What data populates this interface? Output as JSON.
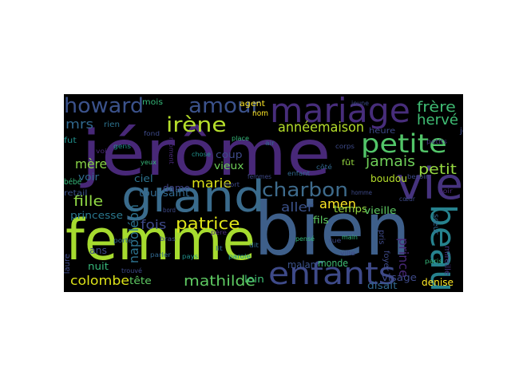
{
  "words": [
    {
      "text": "jérôme",
      "color": "#482878"
    },
    {
      "text": "femme",
      "color": "#a6db2f"
    },
    {
      "text": "bien",
      "color": "#3e5f8a"
    },
    {
      "text": "grand",
      "color": "#3a6b8c"
    },
    {
      "text": "vie",
      "color": "#46337e"
    },
    {
      "text": "mariage",
      "color": "#472d7b"
    },
    {
      "text": "enfants",
      "color": "#3e4a89"
    },
    {
      "text": "beau",
      "color": "#26828e"
    },
    {
      "text": "petite",
      "color": "#52c569"
    },
    {
      "text": "howard",
      "color": "#3b528b"
    },
    {
      "text": "amour",
      "color": "#3b528b"
    },
    {
      "text": "charbon",
      "color": "#3e6b8c"
    },
    {
      "text": "irène",
      "color": "#b5de2b"
    },
    {
      "text": "patrice",
      "color": "#dde318"
    },
    {
      "text": "mathilde",
      "color": "#5ec962"
    },
    {
      "text": "colombe",
      "color": "#dde318"
    },
    {
      "text": "année",
      "color": "#b5de2b"
    },
    {
      "text": "maison",
      "color": "#b5de2b"
    },
    {
      "text": "jamais",
      "color": "#6ece58"
    },
    {
      "text": "frère",
      "color": "#3fbc73"
    },
    {
      "text": "hervé",
      "color": "#3fbc73"
    },
    {
      "text": "petit",
      "color": "#95d840"
    },
    {
      "text": "fille",
      "color": "#8fd744"
    },
    {
      "text": "mère",
      "color": "#89d548"
    },
    {
      "text": "mrs",
      "color": "#31688e"
    },
    {
      "text": "marie",
      "color": "#dde318"
    },
    {
      "text": "amen",
      "color": "#fde725"
    },
    {
      "text": "aller",
      "color": "#3b528b"
    },
    {
      "text": "prince",
      "color": "#482878"
    },
    {
      "text": "fois",
      "color": "#3e4a89"
    },
    {
      "text": "napoléon",
      "color": "#2c728e"
    },
    {
      "text": "princesse",
      "color": "#2a788e"
    },
    {
      "text": "voir",
      "color": "#31688e"
    },
    {
      "text": "dame",
      "color": "#414487"
    },
    {
      "text": "vieux",
      "color": "#6ece58"
    },
    {
      "text": "coup",
      "color": "#3e4a89"
    },
    {
      "text": "ciel",
      "color": "#2c728e"
    },
    {
      "text": "toussaint",
      "color": "#31688e"
    },
    {
      "text": "temps",
      "color": "#95d840"
    },
    {
      "text": "fils",
      "color": "#5ec962"
    },
    {
      "text": "vieille",
      "color": "#5ec962"
    },
    {
      "text": "boudou",
      "color": "#b5de2b"
    },
    {
      "text": "disait",
      "color": "#31688e"
    },
    {
      "text": "visage",
      "color": "#3e4a89"
    },
    {
      "text": "denise",
      "color": "#fde725"
    },
    {
      "text": "monde",
      "color": "#3fbc73"
    },
    {
      "text": "malan",
      "color": "#3b528b"
    },
    {
      "text": "loin",
      "color": "#3fbc73"
    },
    {
      "text": "tête",
      "color": "#5ec962"
    },
    {
      "text": "nuit",
      "color": "#35b779"
    },
    {
      "text": "ans",
      "color": "#3e4a89"
    },
    {
      "text": "bébé",
      "color": "#35b779"
    },
    {
      "text": "retail",
      "color": "#3b528b"
    },
    {
      "text": "fut",
      "color": "#21918c"
    },
    {
      "text": "rien",
      "color": "#2c728e"
    },
    {
      "text": "mois",
      "color": "#35b779"
    },
    {
      "text": "agent",
      "color": "#fde725"
    },
    {
      "text": "nom",
      "color": "#fde725"
    },
    {
      "text": "heure",
      "color": "#3e4a89"
    },
    {
      "text": "jour",
      "color": "#3e4a89"
    },
    {
      "text": "fût",
      "color": "#95d840"
    },
    {
      "text": "laure",
      "color": "#3e4a89"
    },
    {
      "text": "foyer",
      "color": "#3e4a89"
    },
    {
      "text": "pris",
      "color": "#3e4a89"
    },
    {
      "text": "mireille",
      "color": "#46337e"
    },
    {
      "text": "sœur",
      "color": "#31688e"
    },
    {
      "text": "trouvé",
      "color": "#3e4a89"
    },
    {
      "text": "moment",
      "color": "#482878"
    },
    {
      "text": "jeune",
      "color": "#3e4a89"
    },
    {
      "text": "yeux",
      "color": "#35b779"
    },
    {
      "text": "petits",
      "color": "#46337e"
    },
    {
      "text": "bord",
      "color": "#3e4a89"
    },
    {
      "text": "lit",
      "color": "#31688e"
    },
    {
      "text": "parole",
      "color": "#21918c"
    },
    {
      "text": "rue",
      "color": "#3e4a89"
    },
    {
      "text": "main",
      "color": "#35b779"
    },
    {
      "text": "porte",
      "color": "#31688e"
    },
    {
      "text": "bras",
      "color": "#3e4a89"
    },
    {
      "text": "père",
      "color": "#482878"
    },
    {
      "text": "dit",
      "color": "#31688e"
    },
    {
      "text": "ville",
      "color": "#3e4a89"
    },
    {
      "text": "gens",
      "color": "#21918c"
    },
    {
      "text": "fond",
      "color": "#3e4a89"
    },
    {
      "text": "place",
      "color": "#35b779"
    },
    {
      "text": "côté",
      "color": "#31688e"
    },
    {
      "text": "corps",
      "color": "#3e4a89"
    },
    {
      "text": "soir",
      "color": "#482878"
    },
    {
      "text": "cœur",
      "color": "#3e4a89"
    },
    {
      "text": "air",
      "color": "#31688e"
    },
    {
      "text": "chose",
      "color": "#21918c"
    },
    {
      "text": "homme",
      "color": "#3e4a89"
    },
    {
      "text": "paris",
      "color": "#35b779"
    },
    {
      "text": "femmes",
      "color": "#3e4a89"
    },
    {
      "text": "enfant",
      "color": "#31688e"
    },
    {
      "text": "voix",
      "color": "#482878"
    },
    {
      "text": "mort",
      "color": "#3e4a89"
    },
    {
      "text": "pays",
      "color": "#21918c"
    },
    {
      "text": "pensé",
      "color": "#35b779"
    },
    {
      "text": "parler",
      "color": "#31688e"
    },
    {
      "text": "besoin",
      "color": "#3e4a89"
    }
  ]
}
